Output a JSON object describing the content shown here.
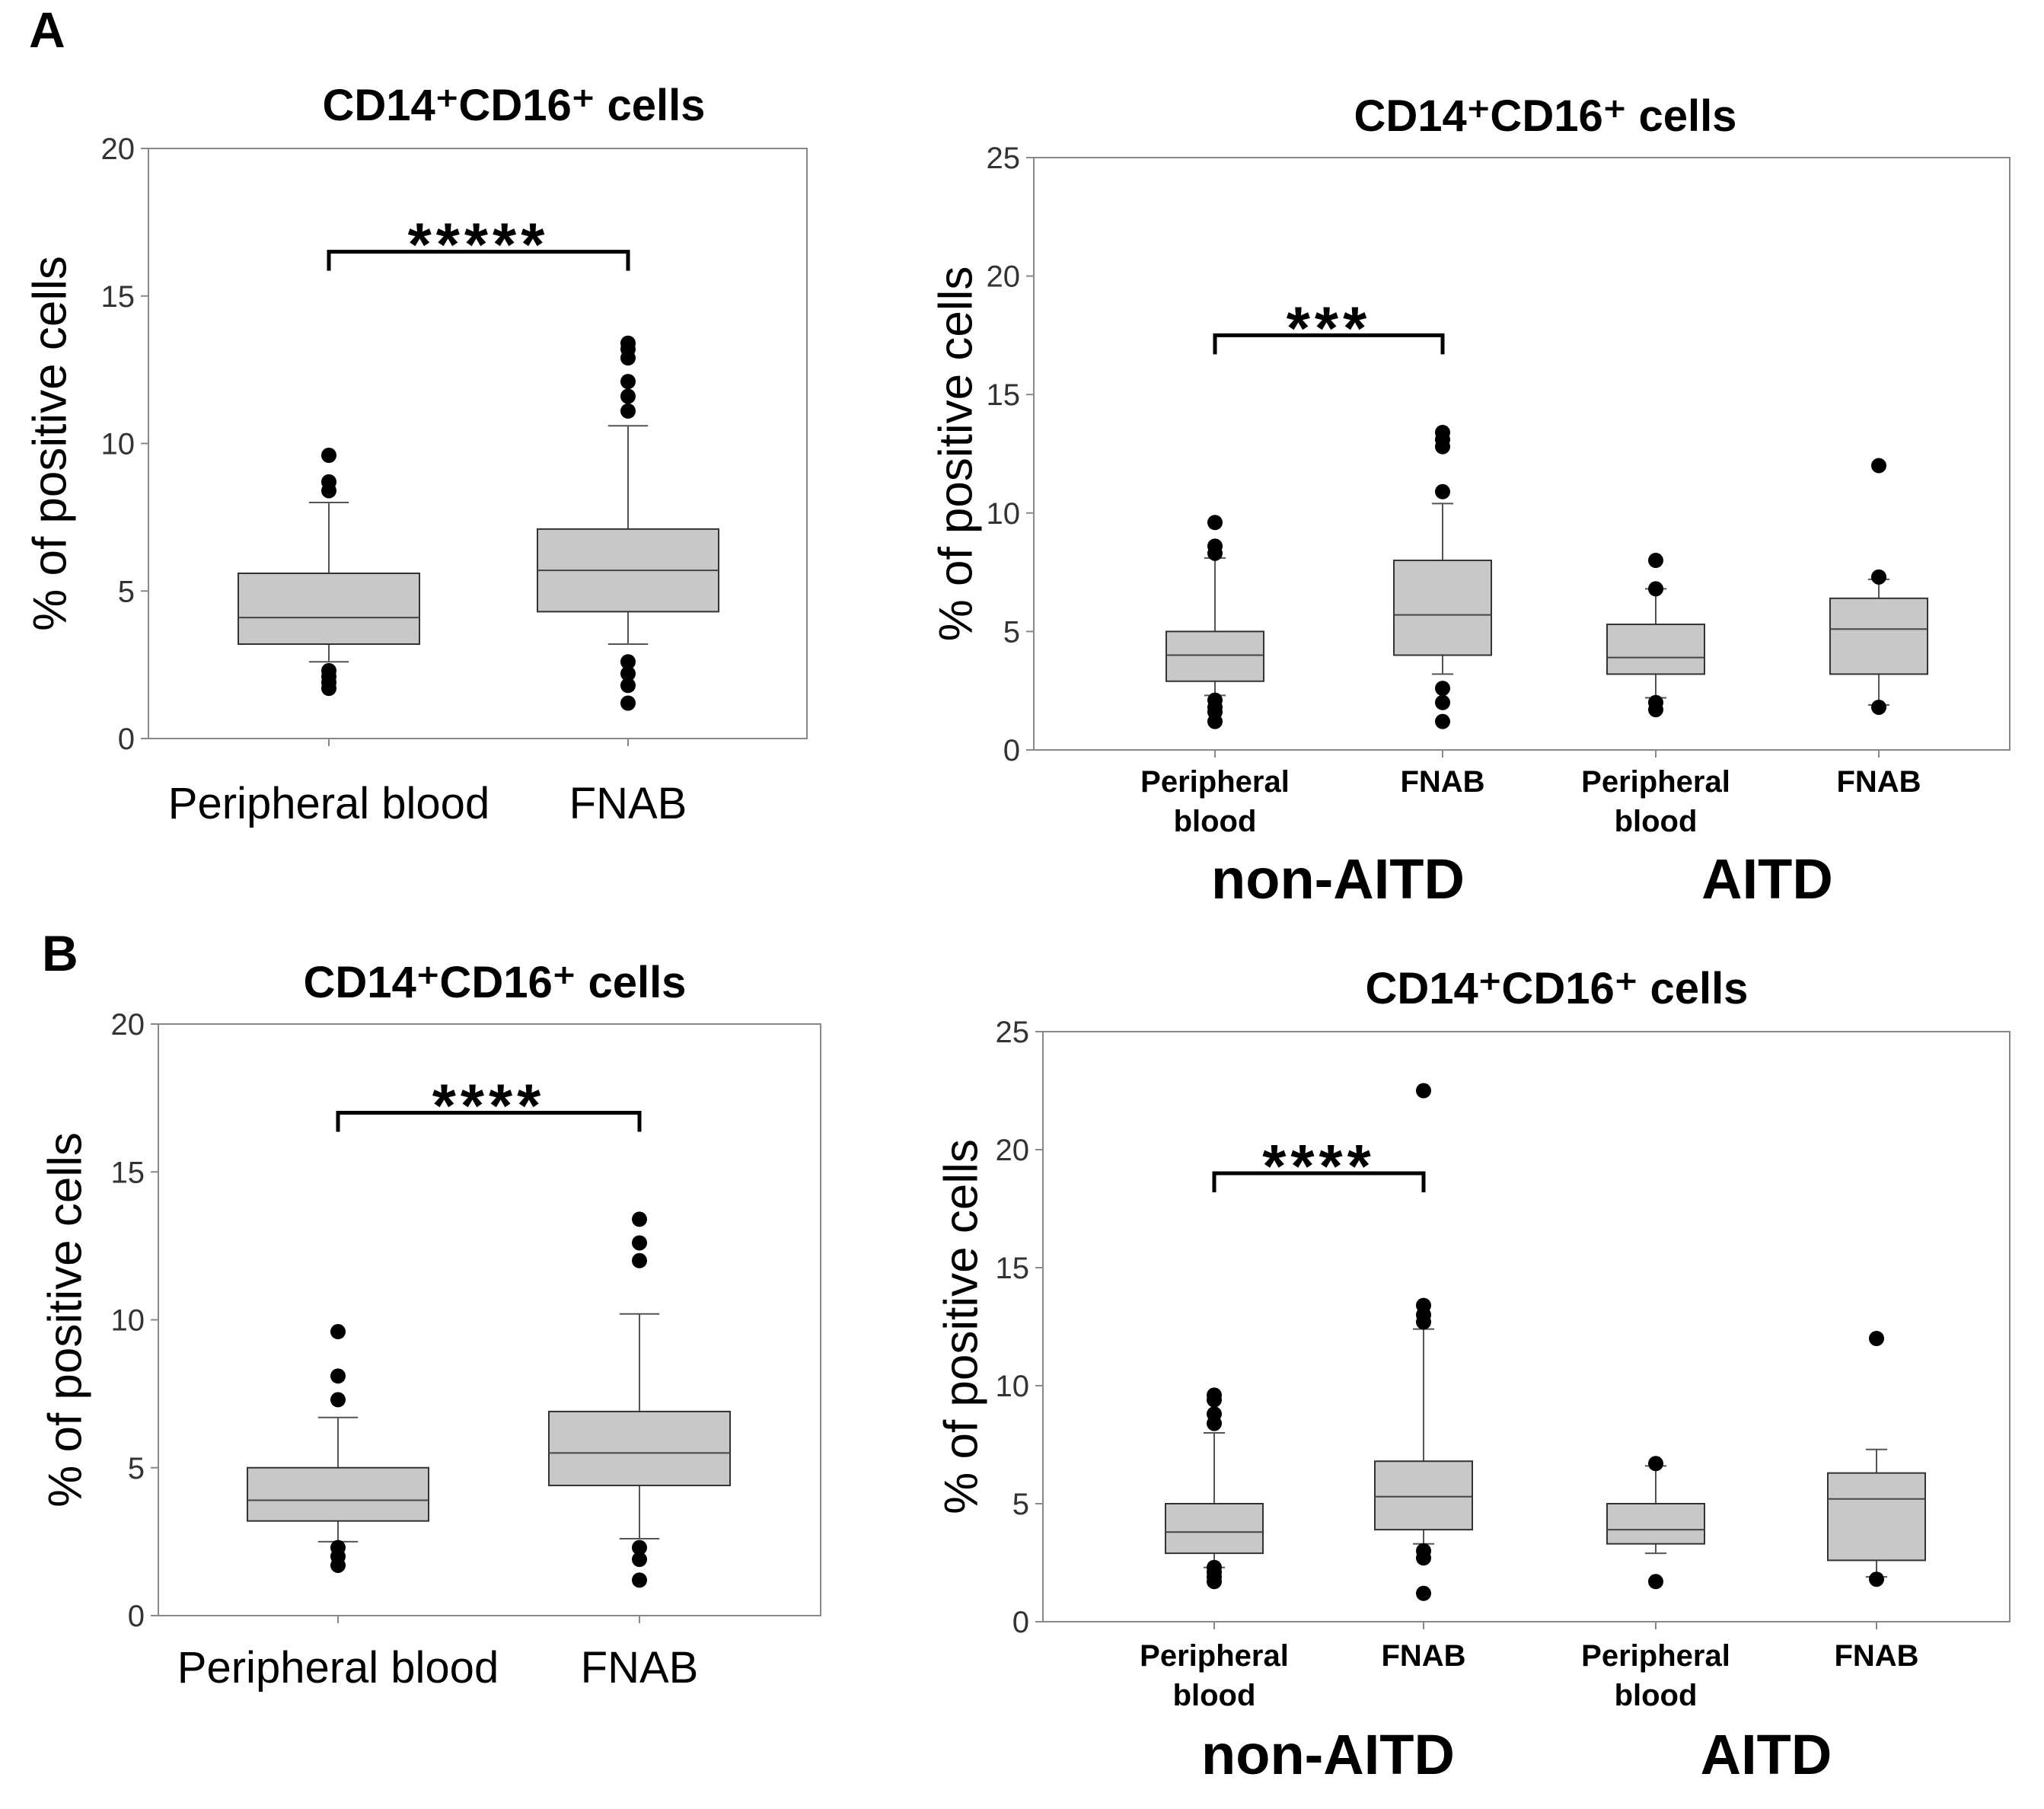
{
  "figure": {
    "panel_labels": [
      "A",
      "B"
    ],
    "colors": {
      "box_fill": "#c8c8c8",
      "box_stroke": "#333333",
      "frame": "#888888",
      "text": "#000000",
      "outlier": "#000000",
      "bracket": "#000000"
    }
  },
  "chart_data": [
    {
      "id": "A-left",
      "type": "box",
      "title": "CD14⁺CD16⁺ cells",
      "ylabel": "% of positive cells",
      "ylim": [
        0,
        20
      ],
      "yticks": [
        "0",
        "5",
        "10",
        "15",
        "20"
      ],
      "categories": [
        "Peripheral blood",
        "FNAB"
      ],
      "boxes": [
        {
          "q1": 3.2,
          "median": 4.1,
          "q3": 5.6,
          "whisker_low": 2.6,
          "whisker_high": 8.0,
          "outliers": [
            1.7,
            1.9,
            2.1,
            2.3,
            8.4,
            8.7,
            9.6
          ]
        },
        {
          "q1": 4.3,
          "median": 5.7,
          "q3": 7.1,
          "whisker_low": 3.2,
          "whisker_high": 10.6,
          "outliers": [
            1.2,
            1.8,
            2.2,
            2.6,
            11.1,
            11.6,
            12.1,
            12.9,
            13.2,
            13.4
          ]
        }
      ],
      "significance": [
        {
          "between": [
            0,
            1
          ],
          "label": "*****",
          "y": 16.5
        }
      ]
    },
    {
      "id": "A-right",
      "type": "box",
      "title": "CD14⁺CD16⁺ cells",
      "ylabel": "% of positive cells",
      "ylim": [
        0,
        25
      ],
      "yticks": [
        "0",
        "5",
        "10",
        "15",
        "20",
        "25"
      ],
      "categories": [
        "Peripheral\nblood",
        "FNAB",
        "Peripheral\nblood",
        "FNAB"
      ],
      "groups": [
        {
          "label": "non-AITD",
          "span": [
            0,
            1
          ]
        },
        {
          "label": "AITD",
          "span": [
            2,
            3
          ]
        }
      ],
      "boxes": [
        {
          "q1": 2.9,
          "median": 4.0,
          "q3": 5.0,
          "whisker_low": 2.3,
          "whisker_high": 8.1,
          "outliers": [
            1.2,
            1.6,
            1.8,
            2.1,
            8.3,
            8.6,
            9.6
          ]
        },
        {
          "q1": 4.0,
          "median": 5.7,
          "q3": 8.0,
          "whisker_low": 3.2,
          "whisker_high": 10.4,
          "outliers": [
            1.2,
            2.0,
            2.6,
            10.9,
            12.8,
            13.1,
            13.4
          ]
        },
        {
          "q1": 3.2,
          "median": 3.9,
          "q3": 5.3,
          "whisker_low": 2.2,
          "whisker_high": 6.8,
          "outliers": [
            1.7,
            2.0,
            6.8,
            8.0
          ]
        },
        {
          "q1": 3.2,
          "median": 5.1,
          "q3": 6.4,
          "whisker_low": 1.9,
          "whisker_high": 7.2,
          "outliers": [
            1.8,
            7.3,
            12.0
          ]
        }
      ],
      "significance": [
        {
          "between": [
            0,
            1
          ],
          "label": "***",
          "y": 17.5
        }
      ]
    },
    {
      "id": "B-left",
      "type": "box",
      "title": "CD14⁺CD16⁺ cells",
      "ylabel": "% of positive cells",
      "ylim": [
        0,
        20
      ],
      "yticks": [
        "0",
        "5",
        "10",
        "15",
        "20"
      ],
      "categories": [
        "Peripheral blood",
        "FNAB"
      ],
      "boxes": [
        {
          "q1": 3.2,
          "median": 3.9,
          "q3": 5.0,
          "whisker_low": 2.5,
          "whisker_high": 6.7,
          "outliers": [
            1.7,
            2.0,
            2.3,
            7.3,
            8.1,
            9.6
          ]
        },
        {
          "q1": 4.4,
          "median": 5.5,
          "q3": 6.9,
          "whisker_low": 2.6,
          "whisker_high": 10.2,
          "outliers": [
            1.2,
            1.9,
            2.3,
            12.0,
            12.6,
            13.4
          ]
        }
      ],
      "significance": [
        {
          "between": [
            0,
            1
          ],
          "label": "****",
          "y": 17.0
        }
      ]
    },
    {
      "id": "B-right",
      "type": "box",
      "title": "CD14⁺CD16⁺ cells",
      "ylabel": "% of positive cells",
      "ylim": [
        0,
        25
      ],
      "yticks": [
        "0",
        "5",
        "10",
        "15",
        "20",
        "25"
      ],
      "categories": [
        "Peripheral\nblood",
        "FNAB",
        "Peripheral\nblood",
        "FNAB"
      ],
      "groups": [
        {
          "label": "non-AITD",
          "span": [
            0,
            1
          ]
        },
        {
          "label": "AITD",
          "span": [
            2,
            3
          ]
        }
      ],
      "boxes": [
        {
          "q1": 2.9,
          "median": 3.8,
          "q3": 5.0,
          "whisker_low": 2.3,
          "whisker_high": 8.0,
          "outliers": [
            1.7,
            1.9,
            2.1,
            2.3,
            8.4,
            8.8,
            9.4,
            9.6
          ]
        },
        {
          "q1": 3.9,
          "median": 5.3,
          "q3": 6.8,
          "whisker_low": 3.3,
          "whisker_high": 12.4,
          "outliers": [
            1.2,
            2.7,
            3.0,
            12.7,
            13.0,
            13.4,
            22.5
          ]
        },
        {
          "q1": 3.3,
          "median": 3.9,
          "q3": 5.0,
          "whisker_low": 2.9,
          "whisker_high": 6.6,
          "outliers": [
            1.7,
            6.7
          ]
        },
        {
          "q1": 2.6,
          "median": 5.2,
          "q3": 6.3,
          "whisker_low": 1.9,
          "whisker_high": 7.3,
          "outliers": [
            1.8,
            12.0
          ]
        }
      ],
      "significance": [
        {
          "between": [
            0,
            1
          ],
          "label": "****",
          "y": 19.0
        }
      ]
    }
  ]
}
